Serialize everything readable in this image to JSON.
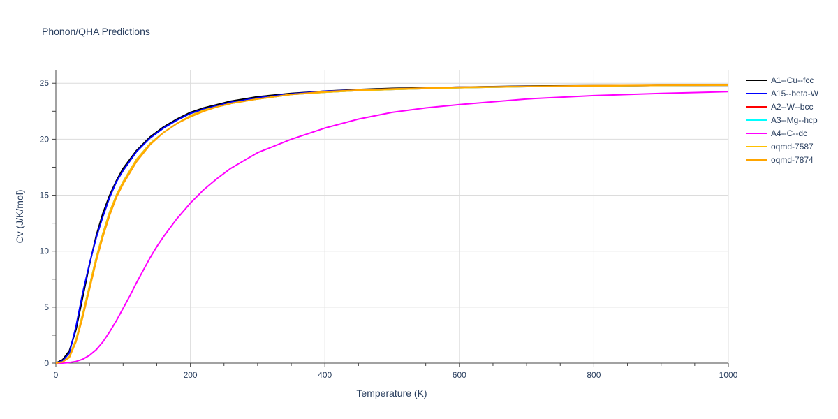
{
  "chart_data": {
    "type": "line",
    "title": "Phonon/QHA Predictions",
    "xlabel": "Temperature (K)",
    "ylabel": "Cv (J/K/mol)",
    "xlim": [
      0,
      1000
    ],
    "ylim": [
      0,
      26.2
    ],
    "xticks": [
      0,
      200,
      400,
      600,
      800,
      1000
    ],
    "yticks": [
      0,
      5,
      10,
      15,
      20,
      25
    ],
    "grid": true,
    "legend_position": "right",
    "series": [
      {
        "name": "A1--Cu--fcc",
        "color": "#000000",
        "x": [
          0,
          10,
          20,
          30,
          40,
          50,
          60,
          70,
          80,
          90,
          100,
          120,
          140,
          160,
          180,
          200,
          220,
          240,
          260,
          280,
          300,
          350,
          400,
          450,
          500,
          600,
          700,
          800,
          900,
          1000
        ],
        "y": [
          0,
          0.3,
          1.1,
          3.0,
          5.9,
          8.8,
          11.4,
          13.4,
          15.0,
          16.3,
          17.4,
          19.0,
          20.2,
          21.1,
          21.8,
          22.4,
          22.8,
          23.1,
          23.4,
          23.6,
          23.8,
          24.1,
          24.3,
          24.45,
          24.55,
          24.65,
          24.75,
          24.78,
          24.8,
          24.82
        ]
      },
      {
        "name": "A15--beta-W",
        "color": "#0000ff",
        "x": [
          0,
          10,
          20,
          30,
          40,
          50,
          60,
          70,
          80,
          90,
          100,
          120,
          140,
          160,
          180,
          200,
          220,
          240,
          260,
          280,
          300,
          350,
          400,
          450,
          500,
          600,
          700,
          800,
          900,
          1000
        ],
        "y": [
          0,
          0.2,
          0.9,
          3.3,
          6.3,
          8.9,
          11.2,
          13.1,
          14.8,
          16.2,
          17.2,
          18.9,
          20.1,
          21.0,
          21.7,
          22.3,
          22.7,
          23.0,
          23.3,
          23.5,
          23.7,
          24.05,
          24.3,
          24.4,
          24.5,
          24.65,
          24.72,
          24.76,
          24.8,
          24.82
        ]
      },
      {
        "name": "A2--W--bcc",
        "color": "#ff0000",
        "x": [
          0,
          10,
          20,
          30,
          40,
          50,
          60,
          70,
          80,
          90,
          100,
          120,
          140,
          160,
          180,
          200,
          220,
          240,
          260,
          280,
          300,
          350,
          400,
          450,
          500,
          600,
          700,
          800,
          900,
          1000
        ],
        "y": [
          0,
          0.1,
          0.6,
          2.1,
          4.4,
          6.9,
          9.4,
          11.6,
          13.5,
          15.0,
          16.2,
          18.2,
          19.6,
          20.6,
          21.4,
          22.1,
          22.6,
          22.9,
          23.2,
          23.4,
          23.6,
          24.0,
          24.2,
          24.35,
          24.45,
          24.6,
          24.7,
          24.75,
          24.8,
          24.82
        ]
      },
      {
        "name": "A3--Mg--hcp",
        "color": "#00ffff",
        "x": [
          0,
          10,
          20,
          30,
          40,
          50,
          60,
          70,
          80,
          90,
          100,
          120,
          140,
          160,
          180,
          200,
          220,
          240,
          260,
          280,
          300,
          350,
          400,
          450,
          500,
          600,
          700,
          800,
          900,
          1000
        ],
        "y": [
          0,
          0.1,
          0.6,
          2.1,
          4.4,
          6.9,
          9.4,
          11.6,
          13.5,
          15.0,
          16.2,
          18.2,
          19.6,
          20.6,
          21.4,
          22.1,
          22.6,
          22.9,
          23.2,
          23.4,
          23.6,
          24.0,
          24.2,
          24.35,
          24.45,
          24.6,
          24.7,
          24.75,
          24.8,
          24.82
        ]
      },
      {
        "name": "A4--C--dc",
        "color": "#ff00ff",
        "x": [
          0,
          10,
          20,
          30,
          40,
          50,
          60,
          70,
          80,
          90,
          100,
          110,
          120,
          130,
          140,
          150,
          160,
          180,
          200,
          220,
          240,
          260,
          280,
          300,
          350,
          400,
          450,
          500,
          550,
          600,
          700,
          800,
          900,
          1000
        ],
        "y": [
          0,
          0.0,
          0.05,
          0.15,
          0.35,
          0.7,
          1.2,
          1.9,
          2.8,
          3.8,
          4.9,
          6.0,
          7.2,
          8.3,
          9.4,
          10.4,
          11.3,
          12.9,
          14.3,
          15.5,
          16.5,
          17.4,
          18.1,
          18.8,
          20.0,
          21.0,
          21.8,
          22.4,
          22.8,
          23.1,
          23.6,
          23.9,
          24.1,
          24.25
        ]
      },
      {
        "name": "oqmd-7587",
        "color": "#ffc000",
        "x": [
          0,
          10,
          20,
          30,
          40,
          50,
          60,
          70,
          80,
          90,
          100,
          120,
          140,
          160,
          180,
          200,
          220,
          240,
          260,
          280,
          300,
          350,
          400,
          450,
          500,
          600,
          700,
          800,
          900,
          1000
        ],
        "y": [
          0,
          0.1,
          0.6,
          2.1,
          4.4,
          6.9,
          9.4,
          11.6,
          13.5,
          15.0,
          16.2,
          18.2,
          19.6,
          20.6,
          21.4,
          22.1,
          22.6,
          22.9,
          23.2,
          23.4,
          23.6,
          24.0,
          24.2,
          24.35,
          24.45,
          24.6,
          24.7,
          24.75,
          24.8,
          24.82
        ]
      },
      {
        "name": "oqmd-7874",
        "color": "#ffa500",
        "x": [
          0,
          10,
          20,
          30,
          40,
          50,
          60,
          70,
          80,
          90,
          100,
          120,
          140,
          160,
          180,
          200,
          220,
          240,
          260,
          280,
          300,
          350,
          400,
          450,
          500,
          600,
          700,
          800,
          900,
          1000
        ],
        "y": [
          0,
          0.1,
          0.5,
          1.9,
          4.1,
          6.6,
          9.1,
          11.3,
          13.2,
          14.8,
          16.0,
          18.0,
          19.5,
          20.6,
          21.4,
          22.0,
          22.5,
          22.9,
          23.2,
          23.4,
          23.6,
          24.0,
          24.25,
          24.4,
          24.5,
          24.65,
          24.72,
          24.78,
          24.82,
          24.85
        ]
      }
    ]
  }
}
